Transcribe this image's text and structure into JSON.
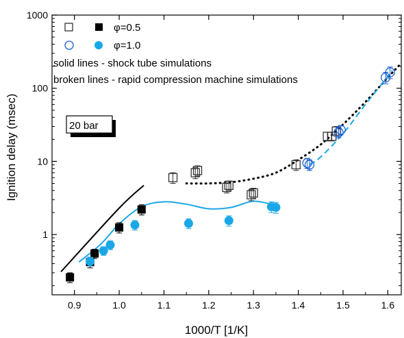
{
  "chart_data": {
    "type": "scatter",
    "xlabel": "1000/T [1/K]",
    "ylabel": "Ignition delay (msec)",
    "yscale": "log",
    "xlim": [
      0.85,
      1.63
    ],
    "ylim": [
      0.15,
      1000
    ],
    "x_ticks": [
      {
        "v": 0.9,
        "label": "0.9"
      },
      {
        "v": 1.0,
        "label": "1.0"
      },
      {
        "v": 1.1,
        "label": "1.1"
      },
      {
        "v": 1.2,
        "label": "1.2"
      },
      {
        "v": 1.3,
        "label": "1.3"
      },
      {
        "v": 1.4,
        "label": "1.4"
      },
      {
        "v": 1.5,
        "label": "1.5"
      },
      {
        "v": 1.6,
        "label": "1.6"
      }
    ],
    "y_ticks": [
      {
        "v": 1,
        "label": "1"
      },
      {
        "v": 10,
        "label": "10"
      },
      {
        "v": 100,
        "label": "100"
      },
      {
        "v": 1000,
        "label": "1000"
      }
    ],
    "grid": false,
    "legend": {
      "placement": "top-left",
      "rows": [
        {
          "label": "φ=0.5",
          "color": "#000000"
        },
        {
          "label": "φ=1.0",
          "color": "#1aa7e8"
        }
      ]
    },
    "annotations": {
      "solid_note": "solid lines - shock tube simulations",
      "broken_note": "broken lines - rapid compression machine simulations",
      "pressure_label": "20 bar"
    },
    "colors": {
      "phi05": "#000000",
      "phi10": "#1aa7e8"
    },
    "series": [
      {
        "marker": "square-filled",
        "color": "#000000",
        "x": [
          0.89,
          0.935,
          0.945,
          1.0,
          1.05
        ],
        "y": [
          0.26,
          0.42,
          0.55,
          1.25,
          2.2
        ],
        "err": [
          0.04,
          0.07,
          0.08,
          0.2,
          0.35
        ]
      },
      {
        "marker": "square-open",
        "color": "#333333",
        "x": [
          1.12,
          1.17,
          1.175,
          1.245,
          1.24,
          1.3,
          1.295,
          1.395,
          1.465,
          1.475,
          1.485
        ],
        "y": [
          6.0,
          7.0,
          7.5,
          4.7,
          4.4,
          3.7,
          3.5,
          9.0,
          22,
          22,
          26
        ],
        "err": [
          1.0,
          1.2,
          1.2,
          0.7,
          0.7,
          0.6,
          0.6,
          1.5,
          3,
          3,
          4
        ]
      },
      {
        "marker": "circle-filled",
        "color": "#1aa7e8",
        "x": [
          0.935,
          0.965,
          0.98,
          1.035,
          1.155,
          1.245,
          1.34,
          1.35
        ],
        "y": [
          0.43,
          0.6,
          0.72,
          1.35,
          1.42,
          1.55,
          2.4,
          2.35
        ],
        "err": [
          0.06,
          0.08,
          0.1,
          0.2,
          0.22,
          0.25,
          0.4,
          0.4
        ]
      },
      {
        "marker": "circle-open",
        "color": "#1a5fd4",
        "x": [
          1.42,
          1.425,
          1.49,
          1.495,
          1.595,
          1.605
        ],
        "y": [
          9.5,
          9.0,
          25,
          27,
          140,
          165
        ],
        "err": [
          1.5,
          1.5,
          4,
          4,
          25,
          30
        ]
      }
    ],
    "lines": [
      {
        "style": "solid",
        "color": "#000000",
        "x": [
          0.87,
          1.0,
          1.055
        ],
        "y": [
          0.31,
          2.3,
          4.7
        ]
      },
      {
        "style": "solid",
        "color": "#1aa7e8",
        "x": [
          0.91,
          0.96,
          1.0,
          1.05,
          1.1,
          1.15,
          1.2,
          1.25,
          1.3,
          1.35
        ],
        "y": [
          0.42,
          0.75,
          1.4,
          2.4,
          2.8,
          2.6,
          2.25,
          2.35,
          2.85,
          2.5
        ]
      },
      {
        "style": "dotted",
        "color": "#000000",
        "x": [
          1.15,
          1.2,
          1.25,
          1.3,
          1.35,
          1.4,
          1.45,
          1.5,
          1.55,
          1.6,
          1.63
        ],
        "y": [
          5.0,
          5.0,
          5.2,
          5.8,
          7.0,
          10.5,
          17,
          32,
          65,
          140,
          220
        ]
      },
      {
        "style": "dashed",
        "color": "#1aa7e8",
        "x": [
          1.425,
          1.45,
          1.5,
          1.55,
          1.6,
          1.61
        ],
        "y": [
          9.0,
          11.5,
          24,
          60,
          145,
          175
        ]
      }
    ]
  }
}
